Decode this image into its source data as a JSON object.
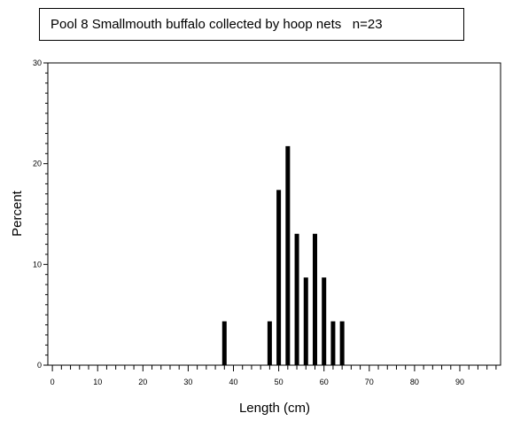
{
  "chart_data": {
    "type": "bar",
    "title": "Pool 8 Smallmouth buffalo collected by hoop nets   n=23",
    "xlabel": "Length (cm)",
    "ylabel": "Percent",
    "xlim": [
      -1,
      99
    ],
    "ylim": [
      0,
      30
    ],
    "x_major_ticks": [
      0,
      10,
      20,
      30,
      40,
      50,
      60,
      70,
      80,
      90
    ],
    "y_major_ticks": [
      0,
      10,
      20,
      30
    ],
    "x": [
      38,
      48,
      50,
      52,
      54,
      56,
      58,
      60,
      62,
      64
    ],
    "values": [
      4.35,
      4.35,
      17.39,
      21.74,
      13.04,
      8.7,
      13.04,
      8.7,
      4.35,
      4.35
    ],
    "grid": false,
    "legend": "none"
  }
}
